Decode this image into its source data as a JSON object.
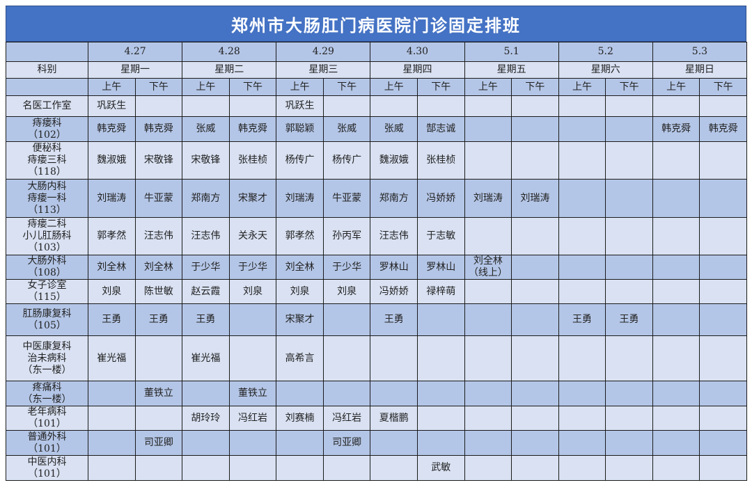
{
  "title": "郑州市大肠肛门病医院门诊固定排班",
  "header": {
    "dept_label": "科别",
    "dates": [
      "4.27",
      "4.28",
      "4.29",
      "4.30",
      "5.1",
      "5.2",
      "5.3"
    ],
    "weekdays": [
      "星期一",
      "星期二",
      "星期三",
      "星期四",
      "星期五",
      "星期六",
      "星期日"
    ],
    "am": "上午",
    "pm": "下午"
  },
  "colors": {
    "title_bg": "#4472C4",
    "row_dark": "#B4C6E7",
    "row_light": "#D9E1F2"
  },
  "rows": [
    {
      "dept": [
        "名医工作室"
      ],
      "cells": [
        "巩跃生",
        "",
        "",
        "",
        "巩跃生",
        "",
        "",
        "",
        "",
        "",
        "",
        "",
        "",
        ""
      ]
    },
    {
      "dept": [
        "痔瘘科",
        "（102）"
      ],
      "cells": [
        "韩克舜",
        "韩克舜",
        "张威",
        "韩克舜",
        "郭聪颖",
        "张威",
        "张威",
        "郜志诚",
        "",
        "",
        "",
        "",
        "韩克舜",
        "韩克舜"
      ]
    },
    {
      "dept": [
        "便秘科",
        "痔瘘三科",
        "（118）"
      ],
      "cells": [
        "魏淑娥",
        "宋敬锋",
        "宋敬锋",
        "张桂桢",
        "杨传广",
        "杨传广",
        "魏淑娥",
        "张桂桢",
        "",
        "",
        "",
        "",
        "",
        ""
      ]
    },
    {
      "dept": [
        "大肠内科",
        "痔瘘一科",
        "（113）"
      ],
      "cells": [
        "刘瑞涛",
        "牛亚蒙",
        "郑南方",
        "宋聚才",
        "刘瑞涛",
        "牛亚蒙",
        "郑南方",
        "冯娇娇",
        "刘瑞涛",
        "刘瑞涛",
        "",
        "",
        "",
        ""
      ]
    },
    {
      "dept": [
        "痔瘘二科",
        "小儿肛肠科",
        "（103）"
      ],
      "cells": [
        "郭孝然",
        "汪志伟",
        "汪志伟",
        "关永天",
        "郭孝然",
        "孙丙军",
        "汪志伟",
        "于志敏",
        "",
        "",
        "",
        "",
        "",
        ""
      ]
    },
    {
      "dept": [
        "大肠外科",
        "（108）"
      ],
      "cells": [
        "刘全林",
        "刘全林",
        "于少华",
        "于少华",
        "刘全林",
        "于少华",
        "罗林山",
        "罗林山",
        "刘全林\n（线上）",
        "",
        "",
        "",
        "",
        ""
      ]
    },
    {
      "dept": [
        "女子诊室",
        "（115）"
      ],
      "cells": [
        "刘泉",
        "陈世敏",
        "赵云霞",
        "刘泉",
        "刘泉",
        "刘泉",
        "冯娇娇",
        "禄梓萌",
        "",
        "",
        "",
        "",
        "",
        ""
      ]
    },
    {
      "dept": [
        "肛肠康复科",
        "（105）"
      ],
      "cells": [
        "王勇",
        "王勇",
        "王勇",
        "",
        "宋聚才",
        "",
        "王勇",
        "",
        "",
        "",
        "王勇",
        "王勇",
        "",
        ""
      ]
    },
    {
      "dept": [
        "中医康复科",
        "治未病科",
        "（东一楼）"
      ],
      "cells": [
        "崔光福",
        "",
        "崔光福",
        "",
        "高希言",
        "",
        "",
        "",
        "",
        "",
        "",
        "",
        "",
        ""
      ]
    },
    {
      "dept": [
        "疼痛科",
        "（东一楼）"
      ],
      "cells": [
        "",
        "董铁立",
        "",
        "董铁立",
        "",
        "",
        "",
        "",
        "",
        "",
        "",
        "",
        "",
        ""
      ]
    },
    {
      "dept": [
        "老年病科",
        "（101）"
      ],
      "cells": [
        "",
        "",
        "胡玲玲",
        "冯红岩",
        "刘赛楠",
        "冯红岩",
        "夏楷鹏",
        "",
        "",
        "",
        "",
        "",
        "",
        ""
      ]
    },
    {
      "dept": [
        "普通外科",
        "（101）"
      ],
      "cells": [
        "",
        "司亚卿",
        "",
        "",
        "",
        "司亚卿",
        "",
        "",
        "",
        "",
        "",
        "",
        "",
        ""
      ]
    },
    {
      "dept": [
        "中医内科",
        "（101）"
      ],
      "cells": [
        "",
        "",
        "",
        "",
        "",
        "",
        "",
        "武敏",
        "",
        "",
        "",
        "",
        "",
        ""
      ]
    }
  ]
}
